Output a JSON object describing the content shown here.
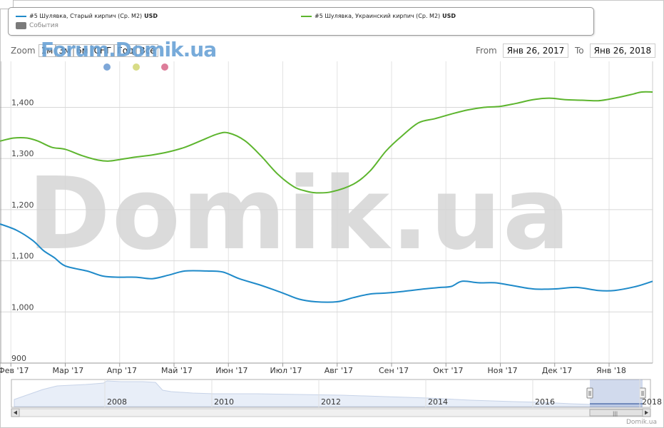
{
  "legend": {
    "series1_label": "#5 Шулявка, Старый кирпич (Ср. М2)",
    "series1_unit": "USD",
    "series2_label": "#5 Шулявка, Украинский кирпич (Ср. М2)",
    "series2_unit": "USD",
    "events_label": "События"
  },
  "zoom": {
    "label": "Zoom",
    "buttons": [
      "1м",
      "3м",
      "6м",
      "СНГ",
      "Год",
      "Всё"
    ]
  },
  "watermark_forum": "Forum.Domik.ua",
  "watermark_main": "Domik.ua",
  "range": {
    "from_label": "From",
    "from_value": "Янв 26, 2017",
    "to_label": "To",
    "to_value": "Янв 26, 2018"
  },
  "copyright": "Domik.ua",
  "colors": {
    "series1": "#1f8ac9",
    "series2": "#5db52e",
    "event_dots": [
      "#7ea7d8",
      "#d8dc86",
      "#dd7d9a"
    ]
  },
  "chart_data": {
    "type": "line",
    "ylim": [
      900,
      1490
    ],
    "yticks": [
      1000,
      1100,
      1200,
      1300,
      1400
    ],
    "ytick_labels": [
      "1,000",
      "1,100",
      "1,200",
      "1,300",
      "1,400"
    ],
    "ymin_label": "900",
    "x_range": [
      0,
      12
    ],
    "xticks": [
      0.2,
      1.2,
      2.2,
      3.2,
      4.2,
      5.2,
      6.2,
      7.2,
      8.2,
      9.2,
      10.2,
      11.2
    ],
    "xtick_labels": [
      "Фев '17",
      "Мар '17",
      "Апр '17",
      "Май '17",
      "Июн '17",
      "Июл '17",
      "Авг '17",
      "Сен '17",
      "Окт '17",
      "Ноя '17",
      "Дек '17",
      "Янв '18"
    ],
    "series": [
      {
        "name": "#5 Шулявка, Старый кирпич (Ср. М2)",
        "x": [
          0,
          0.3,
          0.6,
          0.8,
          1.0,
          1.2,
          1.6,
          1.9,
          2.2,
          2.5,
          2.8,
          3.1,
          3.4,
          3.8,
          4.1,
          4.4,
          4.8,
          5.2,
          5.5,
          5.8,
          6.2,
          6.5,
          6.8,
          7.1,
          7.4,
          7.8,
          8.1,
          8.3,
          8.5,
          8.8,
          9.1,
          9.4,
          9.8,
          10.2,
          10.6,
          11.0,
          11.3,
          11.7,
          12.0
        ],
        "values": [
          1172,
          1160,
          1140,
          1120,
          1106,
          1090,
          1080,
          1070,
          1068,
          1068,
          1065,
          1072,
          1080,
          1080,
          1078,
          1065,
          1052,
          1037,
          1025,
          1020,
          1020,
          1028,
          1035,
          1037,
          1040,
          1045,
          1048,
          1050,
          1060,
          1057,
          1057,
          1052,
          1045,
          1045,
          1048,
          1042,
          1042,
          1050,
          1060
        ]
      },
      {
        "name": "#5 Шулявка, Украинский кирпич (Ср. М2)",
        "x": [
          0,
          0.25,
          0.5,
          0.7,
          0.95,
          1.2,
          1.5,
          1.8,
          2.0,
          2.2,
          2.5,
          2.8,
          3.1,
          3.4,
          3.7,
          4.0,
          4.2,
          4.5,
          4.8,
          5.1,
          5.4,
          5.6,
          5.8,
          6.1,
          6.5,
          6.8,
          7.1,
          7.4,
          7.7,
          8.0,
          8.3,
          8.6,
          8.9,
          9.2,
          9.5,
          9.8,
          10.1,
          10.4,
          10.7,
          11.0,
          11.3,
          11.6,
          11.8,
          12.0
        ],
        "values": [
          1334,
          1340,
          1340,
          1334,
          1322,
          1318,
          1306,
          1297,
          1295,
          1298,
          1303,
          1307,
          1313,
          1322,
          1335,
          1348,
          1350,
          1335,
          1305,
          1270,
          1245,
          1237,
          1233,
          1235,
          1250,
          1275,
          1315,
          1345,
          1370,
          1378,
          1387,
          1395,
          1400,
          1402,
          1408,
          1415,
          1418,
          1415,
          1414,
          1413,
          1418,
          1425,
          1430,
          1430
        ]
      }
    ],
    "navigator": {
      "labels": [
        "2008",
        "2010",
        "2012",
        "2014",
        "2016",
        "2018"
      ]
    }
  }
}
